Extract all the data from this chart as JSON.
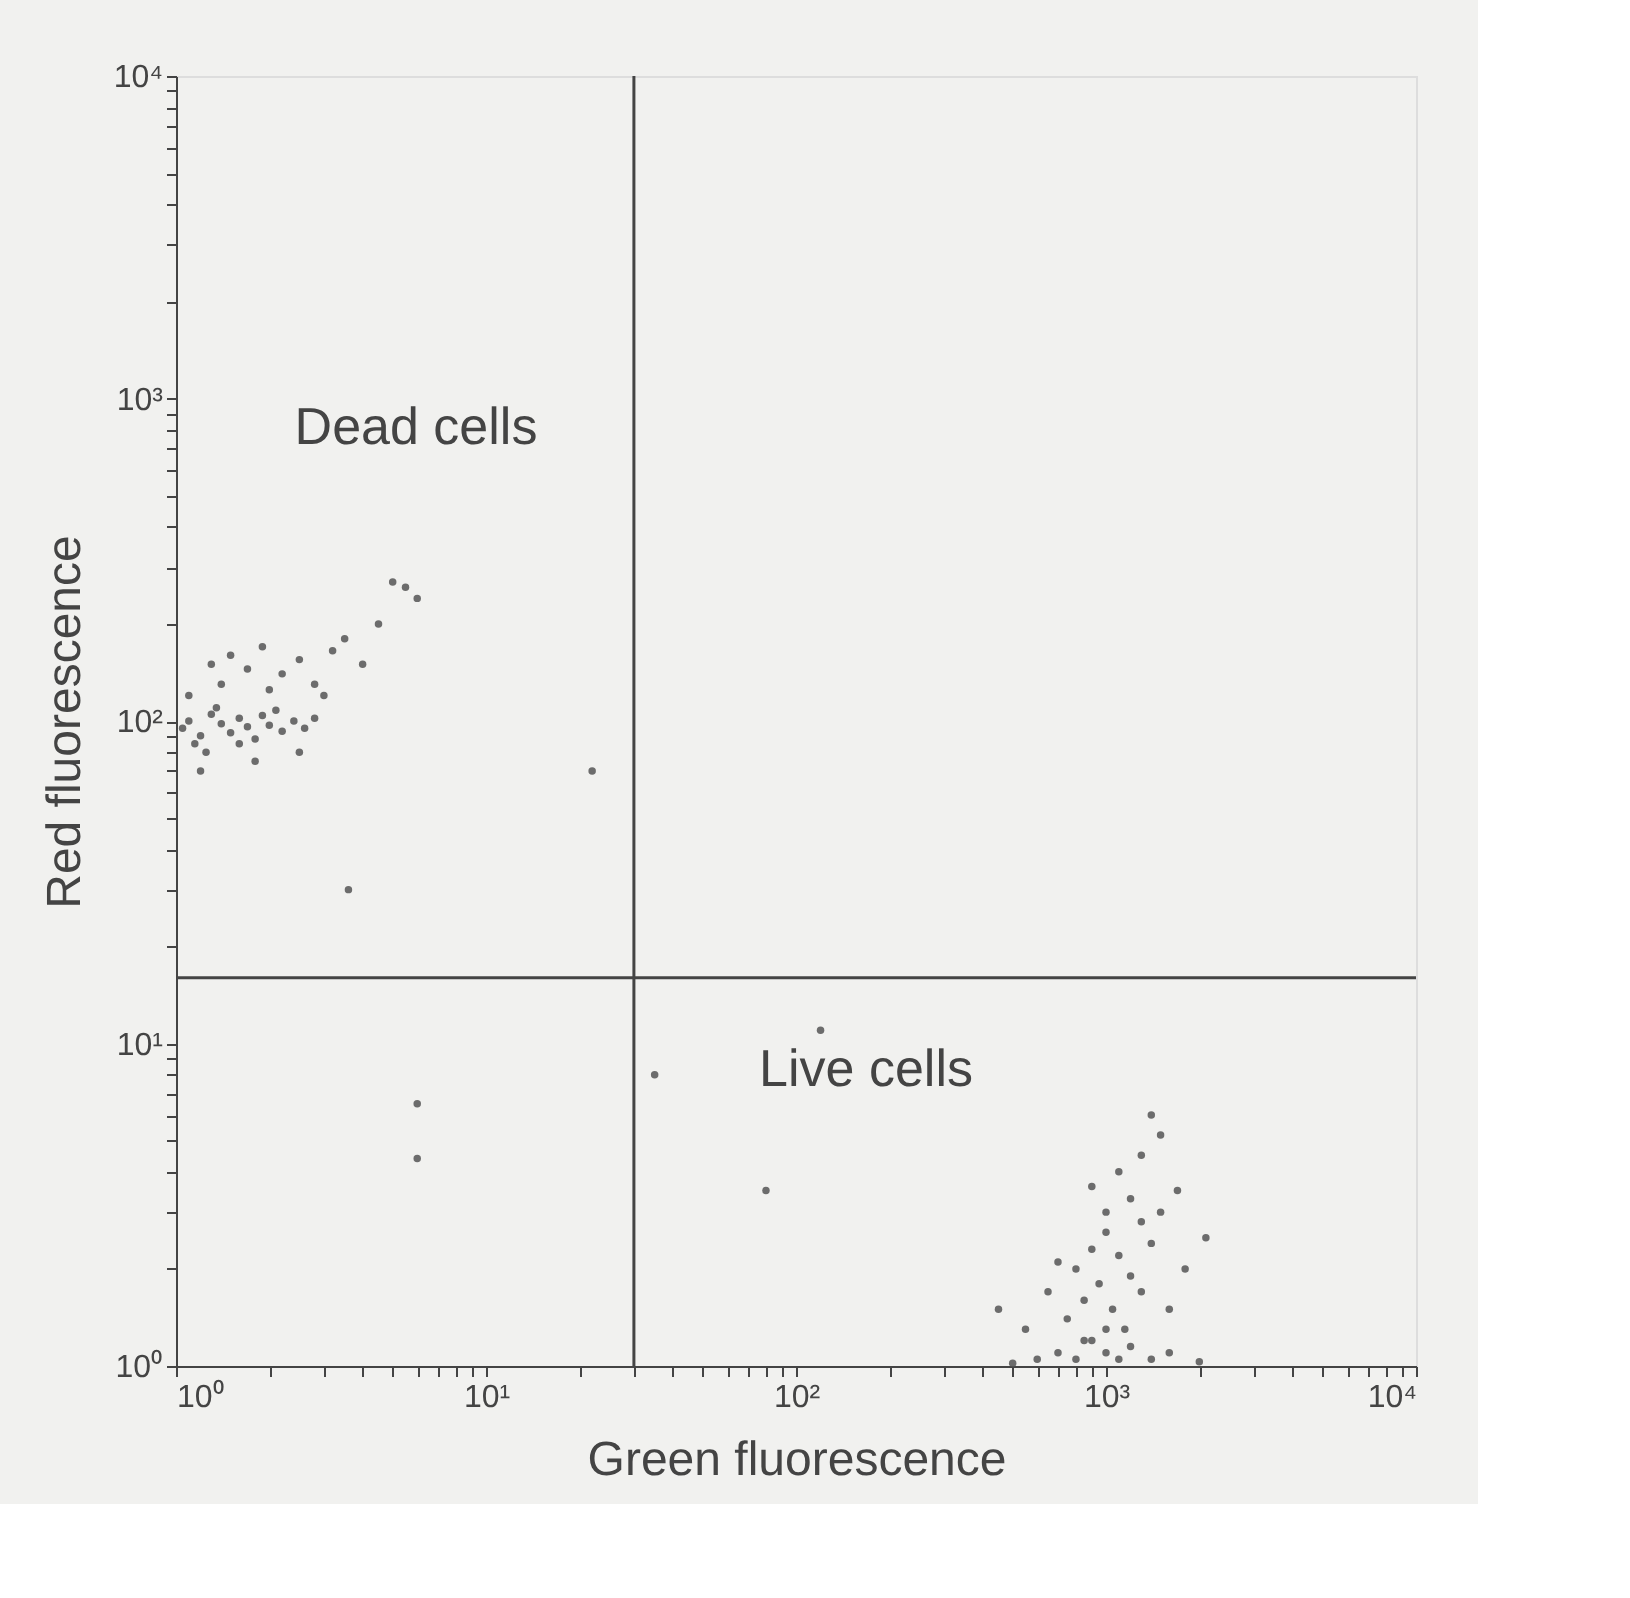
{
  "chart_data": {
    "type": "scatter",
    "xlabel": "Green fluorescence",
    "ylabel": "Red fluorescence",
    "log": "xy",
    "grid": false,
    "marker": "circle",
    "xlim": [
      1,
      10000
    ],
    "ylim": [
      1,
      10000
    ],
    "xticks": [
      {
        "value": 1,
        "label": "10⁰"
      },
      {
        "value": 2,
        "label": null
      },
      {
        "value": 3,
        "label": null
      },
      {
        "value": 4,
        "label": null
      },
      {
        "value": 5,
        "label": null
      },
      {
        "value": 6,
        "label": null
      },
      {
        "value": 7,
        "label": null
      },
      {
        "value": 8,
        "label": null
      },
      {
        "value": 9,
        "label": null
      },
      {
        "value": 10,
        "label": "10¹"
      },
      {
        "value": 20,
        "label": null
      },
      {
        "value": 30,
        "label": null
      },
      {
        "value": 40,
        "label": null
      },
      {
        "value": 50,
        "label": null
      },
      {
        "value": 60,
        "label": null
      },
      {
        "value": 70,
        "label": null
      },
      {
        "value": 80,
        "label": null
      },
      {
        "value": 90,
        "label": null
      },
      {
        "value": 100,
        "label": "10²"
      },
      {
        "value": 200,
        "label": null
      },
      {
        "value": 300,
        "label": null
      },
      {
        "value": 400,
        "label": null
      },
      {
        "value": 500,
        "label": null
      },
      {
        "value": 600,
        "label": null
      },
      {
        "value": 700,
        "label": null
      },
      {
        "value": 800,
        "label": null
      },
      {
        "value": 900,
        "label": null
      },
      {
        "value": 1000,
        "label": "10³"
      },
      {
        "value": 2000,
        "label": null
      },
      {
        "value": 3000,
        "label": null
      },
      {
        "value": 4000,
        "label": null
      },
      {
        "value": 5000,
        "label": null
      },
      {
        "value": 6000,
        "label": null
      },
      {
        "value": 7000,
        "label": null
      },
      {
        "value": 8000,
        "label": null
      },
      {
        "value": 9000,
        "label": null
      },
      {
        "value": 10000,
        "label": "10⁴"
      }
    ],
    "yticks": [
      {
        "value": 1,
        "label": "10⁰"
      },
      {
        "value": 2,
        "label": null
      },
      {
        "value": 3,
        "label": null
      },
      {
        "value": 4,
        "label": null
      },
      {
        "value": 5,
        "label": null
      },
      {
        "value": 6,
        "label": null
      },
      {
        "value": 7,
        "label": null
      },
      {
        "value": 8,
        "label": null
      },
      {
        "value": 9,
        "label": null
      },
      {
        "value": 10,
        "label": "10¹"
      },
      {
        "value": 20,
        "label": null
      },
      {
        "value": 30,
        "label": null
      },
      {
        "value": 40,
        "label": null
      },
      {
        "value": 50,
        "label": null
      },
      {
        "value": 60,
        "label": null
      },
      {
        "value": 70,
        "label": null
      },
      {
        "value": 80,
        "label": null
      },
      {
        "value": 90,
        "label": null
      },
      {
        "value": 100,
        "label": "10²"
      },
      {
        "value": 200,
        "label": null
      },
      {
        "value": 300,
        "label": null
      },
      {
        "value": 400,
        "label": null
      },
      {
        "value": 500,
        "label": null
      },
      {
        "value": 600,
        "label": null
      },
      {
        "value": 700,
        "label": null
      },
      {
        "value": 800,
        "label": null
      },
      {
        "value": 900,
        "label": null
      },
      {
        "value": 1000,
        "label": "10³"
      },
      {
        "value": 2000,
        "label": null
      },
      {
        "value": 3000,
        "label": null
      },
      {
        "value": 4000,
        "label": null
      },
      {
        "value": 5000,
        "label": null
      },
      {
        "value": 6000,
        "label": null
      },
      {
        "value": 7000,
        "label": null
      },
      {
        "value": 8000,
        "label": null
      },
      {
        "value": 9000,
        "label": null
      },
      {
        "value": 10000,
        "label": "10⁴"
      }
    ],
    "ref_lines": [
      {
        "axis": "x",
        "value": 30,
        "label": null,
        "color": "#444444"
      },
      {
        "axis": "y",
        "value": 16,
        "label": null,
        "color": "#444444"
      }
    ],
    "annotations": [
      "Dead cells",
      "Live cells"
    ],
    "series": [
      {
        "color": "#555555",
        "x": [
          1.05,
          1.1,
          1.2,
          1.3,
          1.4,
          1.5,
          1.6,
          1.7,
          1.8,
          1.9,
          2.0,
          2.2,
          2.4,
          2.6,
          1.15,
          1.35,
          1.25,
          1.6,
          2.1,
          2.8,
          1.1,
          1.3,
          1.5,
          1.7,
          1.9,
          2.2,
          2.5,
          2.8,
          3.2,
          3.5,
          4.0,
          3.0,
          1.4,
          2.0,
          5.5,
          6.0,
          5.0,
          4.5,
          1.2,
          1.8,
          2.5,
          22,
          3.6,
          6,
          6,
          600,
          700,
          800,
          900,
          1000,
          1100,
          1200,
          1400,
          1600,
          2000,
          500,
          750,
          850,
          950,
          1050,
          1150,
          1300,
          800,
          900,
          1000,
          1100,
          1200,
          1400,
          700,
          1000,
          1200,
          900,
          1300,
          1500,
          1100,
          1300,
          1500,
          1400,
          1700,
          1800,
          2100,
          650,
          550,
          450,
          1600,
          1000,
          850,
          80,
          120,
          35
        ],
        "values": [
          95,
          100,
          90,
          105,
          98,
          92,
          102,
          96,
          88,
          104,
          97,
          93,
          100,
          95,
          85,
          110,
          80,
          85,
          108,
          102,
          120,
          150,
          160,
          145,
          170,
          140,
          155,
          130,
          165,
          180,
          150,
          120,
          130,
          125,
          260,
          240,
          270,
          200,
          70,
          75,
          80,
          70,
          30,
          6.5,
          4.4,
          1.05,
          1.1,
          1.05,
          1.2,
          1.1,
          1.05,
          1.15,
          1.05,
          1.1,
          1.03,
          1.02,
          1.4,
          1.6,
          1.8,
          1.5,
          1.3,
          1.7,
          2.0,
          2.3,
          2.6,
          2.2,
          1.9,
          2.4,
          2.1,
          3.0,
          3.3,
          3.6,
          2.8,
          3.0,
          4.0,
          4.5,
          5.2,
          6.0,
          3.5,
          2.0,
          2.5,
          1.7,
          1.3,
          1.5,
          1.5,
          1.3,
          1.2,
          3.5,
          11,
          8
        ]
      }
    ]
  }
}
